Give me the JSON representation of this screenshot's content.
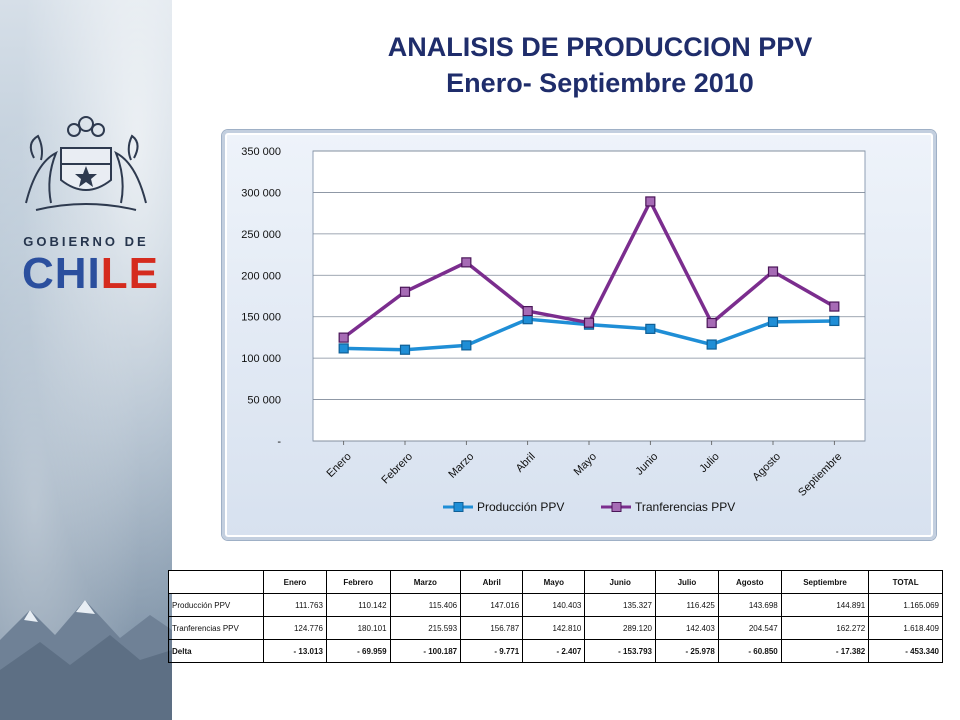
{
  "brand": {
    "gov_label": "GOBIERNO DE",
    "chile_blue": "CHI",
    "chile_red": "LE"
  },
  "title_line1": "ANALISIS DE PRODUCCION PPV",
  "title_line2": "Enero- Septiembre 2010",
  "colors": {
    "produccion": "#1f8ed6",
    "transferencias": "#7b2d8e",
    "title": "#1f2d6b"
  },
  "chart_data": {
    "type": "line",
    "categories": [
      "Enero",
      "Febrero",
      "Marzo",
      "Abril",
      "Mayo",
      "Junio",
      "Julio",
      "Agosto",
      "Septiembre"
    ],
    "series": [
      {
        "name": "Producción PPV",
        "values": [
          111763,
          110142,
          115406,
          147016,
          140403,
          135327,
          116425,
          143698,
          144891
        ]
      },
      {
        "name": "Tranferencias  PPV",
        "values": [
          124776,
          180101,
          215593,
          156787,
          142810,
          289120,
          142403,
          204547,
          162272
        ]
      }
    ],
    "ylim": [
      0,
      350000
    ],
    "yticks": [
      0,
      50000,
      100000,
      150000,
      200000,
      250000,
      300000,
      350000
    ],
    "ytick_labels": [
      "-",
      "50 000",
      "100 000",
      "150 000",
      "200 000",
      "250 000",
      "300 000",
      "350 000"
    ],
    "grid": true,
    "legend": "bottom"
  },
  "table": {
    "headers": [
      "",
      "Enero",
      "Febrero",
      "Marzo",
      "Abril",
      "Mayo",
      "Junio",
      "Julio",
      "Agosto",
      "Septiembre",
      "TOTAL"
    ],
    "rows": [
      {
        "label": "Producción PPV",
        "cells": [
          "111.763",
          "110.142",
          "115.406",
          "147.016",
          "140.403",
          "135.327",
          "116.425",
          "143.698",
          "144.891",
          "1.165.069"
        ]
      },
      {
        "label": "Tranferencias PPV",
        "cells": [
          "124.776",
          "180.101",
          "215.593",
          "156.787",
          "142.810",
          "289.120",
          "142.403",
          "204.547",
          "162.272",
          "1.618.409"
        ]
      },
      {
        "label": "Delta",
        "cells": [
          "-      13.013",
          "-      69.959",
          "-    100.187",
          "-        9.771",
          "-        2.407",
          "-    153.793",
          "-      25.978",
          "-      60.850",
          "-      17.382",
          "-      453.340"
        ]
      }
    ]
  }
}
